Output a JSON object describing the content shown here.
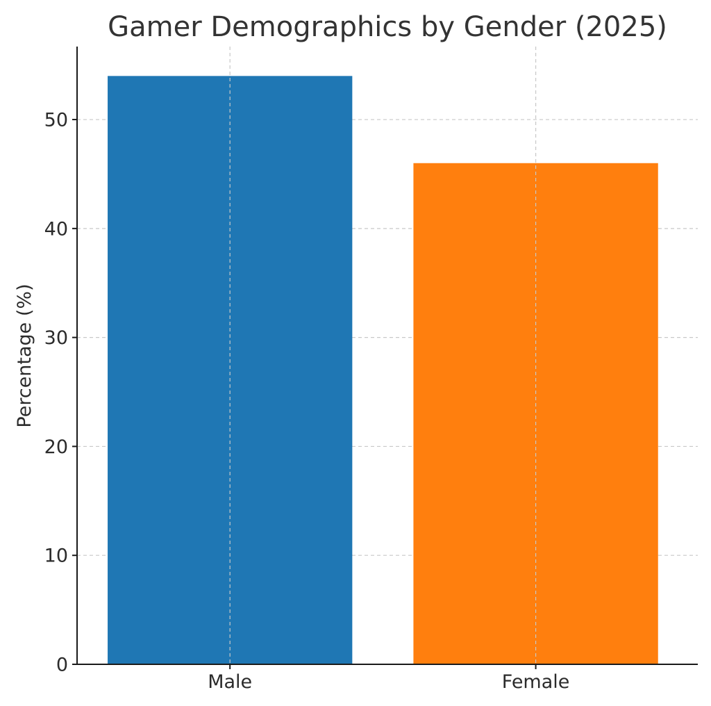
{
  "chart_data": {
    "type": "bar",
    "title": "Gamer Demographics by Gender (2025)",
    "xlabel": "",
    "ylabel": "Percentage (%)",
    "categories": [
      "Male",
      "Female"
    ],
    "values": [
      54,
      46
    ],
    "colors": [
      "#1f77b4",
      "#ff7f0e"
    ],
    "ylim": [
      0,
      56.7
    ],
    "yticks": [
      0,
      10,
      20,
      30,
      40,
      50
    ],
    "grid": true
  }
}
